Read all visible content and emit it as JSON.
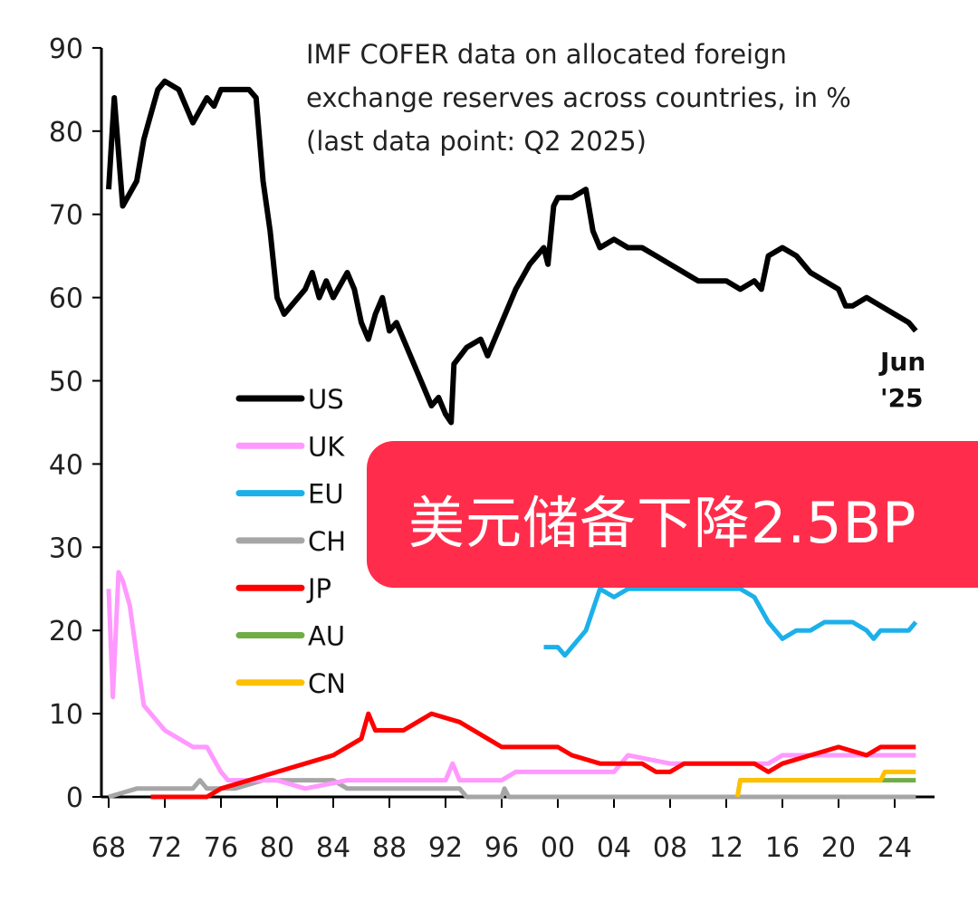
{
  "chart_data": {
    "type": "line",
    "title": "IMF COFER data on allocated foreign exchange reserves across countries, in %",
    "title_lines": [
      "IMF COFER data on allocated foreign",
      "exchange reserves across countries, in %",
      "(last data point: Q2 2025)"
    ],
    "end_label": [
      "Jun",
      "'25"
    ],
    "xlim": [
      1968,
      2026
    ],
    "ylim": [
      0,
      90
    ],
    "yticks": [
      0,
      10,
      20,
      30,
      40,
      50,
      60,
      70,
      80,
      90
    ],
    "xticks": [
      1968,
      1972,
      1976,
      1980,
      1984,
      1988,
      1992,
      1996,
      2000,
      2004,
      2008,
      2012,
      2016,
      2020,
      2024
    ],
    "xtick_labels": [
      "68",
      "72",
      "76",
      "80",
      "84",
      "88",
      "92",
      "96",
      "00",
      "04",
      "08",
      "12",
      "16",
      "20",
      "24"
    ],
    "grid": false,
    "legend_position": "left-middle",
    "series": [
      {
        "name": "US",
        "color": "#000000",
        "points": [
          [
            1968,
            73
          ],
          [
            1968.4,
            84
          ],
          [
            1969,
            71
          ],
          [
            1970,
            74
          ],
          [
            1970.5,
            79
          ],
          [
            1971,
            82
          ],
          [
            1971.5,
            85
          ],
          [
            1972,
            86
          ],
          [
            1973,
            85
          ],
          [
            1974,
            81
          ],
          [
            1975,
            84
          ],
          [
            1975.5,
            83
          ],
          [
            1976,
            85
          ],
          [
            1977,
            85
          ],
          [
            1978,
            85
          ],
          [
            1978.5,
            84
          ],
          [
            1979,
            74
          ],
          [
            1979.5,
            68
          ],
          [
            1980,
            60
          ],
          [
            1980.5,
            58
          ],
          [
            1981,
            59
          ],
          [
            1982,
            61
          ],
          [
            1982.5,
            63
          ],
          [
            1983,
            60
          ],
          [
            1983.5,
            62
          ],
          [
            1984,
            60
          ],
          [
            1985,
            63
          ],
          [
            1985.5,
            61
          ],
          [
            1986,
            57
          ],
          [
            1986.5,
            55
          ],
          [
            1987,
            58
          ],
          [
            1987.5,
            60
          ],
          [
            1988,
            56
          ],
          [
            1988.5,
            57
          ],
          [
            1989,
            55
          ],
          [
            1990,
            51
          ],
          [
            1991,
            47
          ],
          [
            1991.5,
            48
          ],
          [
            1992,
            46
          ],
          [
            1992.4,
            45
          ],
          [
            1992.6,
            52
          ],
          [
            1993.5,
            54
          ],
          [
            1994.5,
            55
          ],
          [
            1995,
            53
          ],
          [
            1996,
            57
          ],
          [
            1997,
            61
          ],
          [
            1998,
            64
          ],
          [
            1998.5,
            65
          ],
          [
            1999,
            66
          ],
          [
            1999.3,
            64
          ],
          [
            1999.7,
            71
          ],
          [
            2000,
            72
          ],
          [
            2001,
            72
          ],
          [
            2002,
            73
          ],
          [
            2002.5,
            68
          ],
          [
            2003,
            66
          ],
          [
            2004,
            67
          ],
          [
            2005,
            66
          ],
          [
            2006,
            66
          ],
          [
            2007,
            65
          ],
          [
            2008,
            64
          ],
          [
            2009,
            63
          ],
          [
            2010,
            62
          ],
          [
            2011,
            62
          ],
          [
            2012,
            62
          ],
          [
            2013,
            61
          ],
          [
            2014,
            62
          ],
          [
            2014.5,
            61
          ],
          [
            2015,
            65
          ],
          [
            2016,
            66
          ],
          [
            2017,
            65
          ],
          [
            2018,
            63
          ],
          [
            2019,
            62
          ],
          [
            2020,
            61
          ],
          [
            2020.5,
            59
          ],
          [
            2021,
            59
          ],
          [
            2022,
            60
          ],
          [
            2023,
            59
          ],
          [
            2024,
            58
          ],
          [
            2025,
            57
          ],
          [
            2025.5,
            56
          ]
        ]
      },
      {
        "name": "UK",
        "color": "#ff99ff",
        "points": [
          [
            1968,
            25
          ],
          [
            1968.3,
            12
          ],
          [
            1968.7,
            27
          ],
          [
            1969,
            26
          ],
          [
            1969.5,
            23
          ],
          [
            1970,
            17
          ],
          [
            1970.5,
            11
          ],
          [
            1971,
            10
          ],
          [
            1972,
            8
          ],
          [
            1973,
            7
          ],
          [
            1974,
            6
          ],
          [
            1975,
            6
          ],
          [
            1976,
            3
          ],
          [
            1976.5,
            2
          ],
          [
            1980,
            2
          ],
          [
            1982,
            1
          ],
          [
            1985,
            2
          ],
          [
            1992,
            2
          ],
          [
            1992.5,
            4
          ],
          [
            1993,
            2
          ],
          [
            1996,
            2
          ],
          [
            1997,
            3
          ],
          [
            2004,
            3
          ],
          [
            2005,
            5
          ],
          [
            2008,
            4
          ],
          [
            2015,
            4
          ],
          [
            2016,
            5
          ],
          [
            2025.5,
            5
          ]
        ]
      },
      {
        "name": "EU",
        "color": "#1cb0ea",
        "points": [
          [
            1999,
            18
          ],
          [
            2000,
            18
          ],
          [
            2000.5,
            17
          ],
          [
            2001,
            18
          ],
          [
            2002,
            20
          ],
          [
            2003,
            25
          ],
          [
            2004,
            24
          ],
          [
            2005,
            25
          ],
          [
            2013,
            25
          ],
          [
            2014,
            24
          ],
          [
            2015,
            21
          ],
          [
            2016,
            19
          ],
          [
            2017,
            20
          ],
          [
            2018,
            20
          ],
          [
            2019,
            21
          ],
          [
            2020,
            21
          ],
          [
            2021,
            21
          ],
          [
            2022,
            20
          ],
          [
            2022.5,
            19
          ],
          [
            2023,
            20
          ],
          [
            2025,
            20
          ],
          [
            2025.5,
            21
          ]
        ]
      },
      {
        "name": "CH",
        "color": "#a6a6a6",
        "points": [
          [
            1968,
            0
          ],
          [
            1970,
            1
          ],
          [
            1974,
            1
          ],
          [
            1974.5,
            2
          ],
          [
            1975,
            1
          ],
          [
            1977,
            1
          ],
          [
            1979,
            2
          ],
          [
            1984,
            2
          ],
          [
            1985,
            1
          ],
          [
            1993,
            1
          ],
          [
            1993.5,
            0
          ],
          [
            1996,
            0
          ],
          [
            1996.2,
            1
          ],
          [
            1996.5,
            0
          ],
          [
            2025.5,
            0
          ]
        ]
      },
      {
        "name": "JP",
        "color": "#ff0000",
        "points": [
          [
            1971,
            0
          ],
          [
            1975,
            0
          ],
          [
            1976,
            1
          ],
          [
            1978,
            2
          ],
          [
            1980,
            3
          ],
          [
            1982,
            4
          ],
          [
            1984,
            5
          ],
          [
            1986,
            7
          ],
          [
            1986.5,
            10
          ],
          [
            1987,
            8
          ],
          [
            1989,
            8
          ],
          [
            1990,
            9
          ],
          [
            1991,
            10
          ],
          [
            1993,
            9
          ],
          [
            1994,
            8
          ],
          [
            1995,
            7
          ],
          [
            1996,
            6
          ],
          [
            2000,
            6
          ],
          [
            2001,
            5
          ],
          [
            2003,
            4
          ],
          [
            2006,
            4
          ],
          [
            2007,
            3
          ],
          [
            2008,
            3
          ],
          [
            2009,
            4
          ],
          [
            2014,
            4
          ],
          [
            2015,
            3
          ],
          [
            2016,
            4
          ],
          [
            2018,
            5
          ],
          [
            2020,
            6
          ],
          [
            2022,
            5
          ],
          [
            2023,
            6
          ],
          [
            2025.5,
            6
          ]
        ]
      },
      {
        "name": "AU",
        "color": "#70ad47",
        "points": [
          [
            2012.8,
            0
          ],
          [
            2013,
            2
          ],
          [
            2023,
            2
          ],
          [
            2025.5,
            2
          ]
        ]
      },
      {
        "name": "CN",
        "color": "#ffc000",
        "points": [
          [
            2012.8,
            0
          ],
          [
            2013,
            2
          ],
          [
            2023,
            2
          ],
          [
            2023.3,
            3
          ],
          [
            2025.5,
            3
          ]
        ]
      }
    ]
  },
  "banner": {
    "text": "美元储备下降2.5BP",
    "color": "#ff2d4b"
  }
}
